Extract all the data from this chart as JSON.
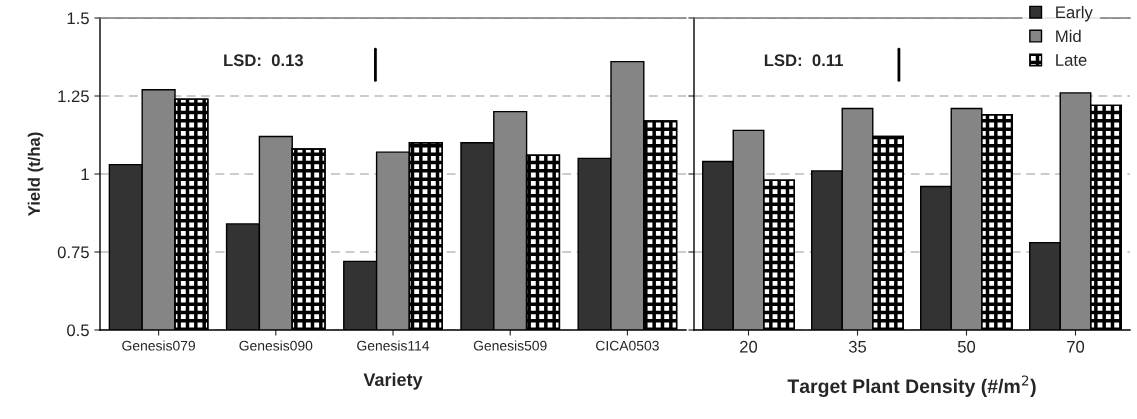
{
  "chart_data": [
    {
      "type": "bar",
      "xlabel": "Variety",
      "ylabel": "Yield (t/ha)",
      "categories": [
        "Genesis079",
        "Genesis090",
        "Genesis114",
        "Genesis509",
        "CICA0503"
      ],
      "series": [
        {
          "color": "#333333",
          "values": [
            1.03,
            0.84,
            0.72,
            1.1,
            1.05
          ]
        },
        {
          "color": "#858585",
          "values": [
            1.27,
            1.12,
            1.07,
            1.2,
            1.36
          ]
        },
        {
          "color": "#000000",
          "values": [
            1.24,
            1.08,
            1.1,
            1.06,
            1.17
          ]
        }
      ],
      "ylim": [
        0.5,
        1.5
      ],
      "yticks": [
        0.5,
        0.75,
        1,
        1.25,
        1.5
      ],
      "grid": "y",
      "legend": false,
      "annotations": [
        "LSD:  0.13"
      ]
    },
    {
      "type": "bar",
      "xlabel": "Target Plant Density (#/m$^{2}$)",
      "categories": [
        "20",
        "35",
        "50",
        "70"
      ],
      "series": [
        {
          "name": "Early",
          "color": "#333333",
          "values": [
            1.04,
            1.01,
            0.96,
            0.78
          ]
        },
        {
          "name": "Mid",
          "color": "#858585",
          "values": [
            1.14,
            1.21,
            1.21,
            1.26
          ]
        },
        {
          "name": "Late",
          "color": "#000000",
          "values": [
            0.98,
            1.12,
            1.19,
            1.22
          ]
        }
      ],
      "ylim": [
        0.5,
        1.5
      ],
      "yticks": [
        0.5,
        0.75,
        1,
        1.25,
        1.5
      ],
      "grid": "y",
      "legend": "top right",
      "tick_labels": "x",
      "annotations": [
        "LSD:  0.11"
      ]
    }
  ]
}
